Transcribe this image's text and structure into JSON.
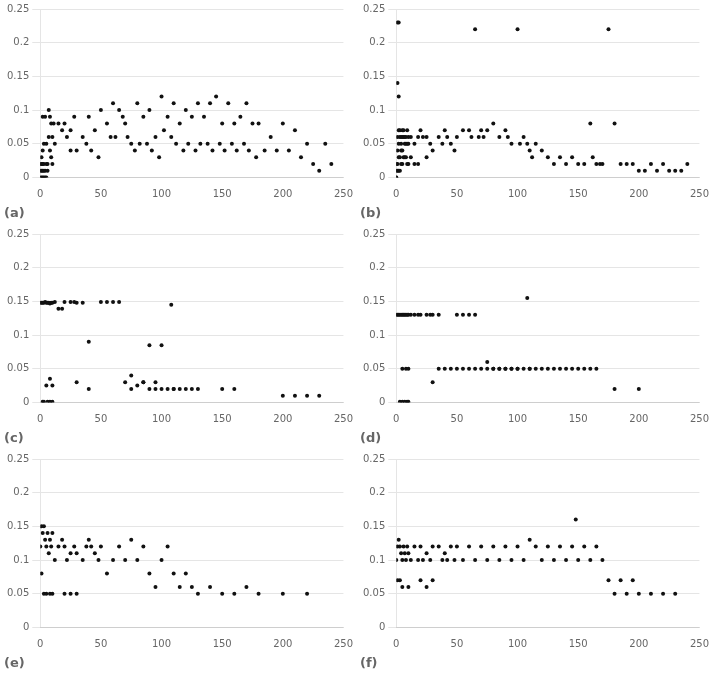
{
  "chart_data": [
    {
      "type": "scatter",
      "title": "(a)",
      "x": [
        0,
        0,
        0,
        1,
        1,
        1,
        1,
        2,
        2,
        2,
        2,
        2,
        3,
        3,
        3,
        3,
        4,
        4,
        4,
        5,
        5,
        5,
        6,
        6,
        7,
        7,
        8,
        8,
        9,
        9,
        10,
        10,
        11,
        12,
        15,
        18,
        20,
        22,
        25,
        25,
        28,
        30,
        35,
        38,
        40,
        42,
        45,
        48,
        50,
        55,
        58,
        60,
        62,
        65,
        68,
        70,
        72,
        75,
        78,
        80,
        82,
        85,
        88,
        90,
        92,
        95,
        98,
        100,
        102,
        105,
        108,
        110,
        112,
        115,
        118,
        120,
        122,
        125,
        128,
        130,
        132,
        135,
        138,
        140,
        142,
        145,
        148,
        150,
        152,
        155,
        158,
        160,
        162,
        165,
        168,
        170,
        172,
        175,
        178,
        180,
        185,
        190,
        195,
        200,
        205,
        210,
        215,
        220,
        225,
        230,
        235,
        240
      ],
      "values": [
        0.0,
        0.01,
        0.02,
        0.0,
        0.01,
        0.02,
        0.03,
        0.0,
        0.01,
        0.02,
        0.04,
        0.09,
        0.0,
        0.01,
        0.02,
        0.05,
        0.0,
        0.01,
        0.09,
        0.0,
        0.02,
        0.05,
        0.01,
        0.02,
        0.1,
        0.06,
        0.09,
        0.04,
        0.08,
        0.03,
        0.06,
        0.02,
        0.08,
        0.05,
        0.08,
        0.07,
        0.08,
        0.06,
        0.07,
        0.04,
        0.09,
        0.04,
        0.06,
        0.05,
        0.09,
        0.04,
        0.07,
        0.03,
        0.1,
        0.08,
        0.06,
        0.11,
        0.06,
        0.1,
        0.09,
        0.08,
        0.06,
        0.05,
        0.04,
        0.11,
        0.05,
        0.09,
        0.05,
        0.1,
        0.04,
        0.06,
        0.03,
        0.12,
        0.07,
        0.09,
        0.06,
        0.11,
        0.05,
        0.08,
        0.04,
        0.1,
        0.05,
        0.09,
        0.04,
        0.11,
        0.05,
        0.09,
        0.05,
        0.11,
        0.04,
        0.12,
        0.05,
        0.08,
        0.04,
        0.11,
        0.05,
        0.08,
        0.04,
        0.09,
        0.05,
        0.11,
        0.04,
        0.08,
        0.03,
        0.08,
        0.04,
        0.06,
        0.04,
        0.08,
        0.04,
        0.07,
        0.03,
        0.05,
        0.02,
        0.01,
        0.05,
        0.02
      ],
      "color": "#111111",
      "xlim": [
        0,
        250
      ],
      "ylim": [
        0,
        0.25
      ],
      "xticks": [
        0,
        50,
        100,
        150,
        200,
        250
      ],
      "yticks": [
        0,
        0.05,
        0.1,
        0.15,
        0.2,
        0.25
      ],
      "grid": "y"
    },
    {
      "type": "scatter",
      "title": "(b)",
      "x": [
        0,
        0,
        0,
        0,
        1,
        1,
        1,
        1,
        1,
        1,
        2,
        2,
        2,
        2,
        2,
        2,
        3,
        3,
        3,
        3,
        4,
        4,
        4,
        4,
        5,
        5,
        5,
        5,
        6,
        6,
        6,
        7,
        7,
        7,
        8,
        8,
        8,
        9,
        9,
        9,
        10,
        10,
        10,
        12,
        12,
        15,
        15,
        18,
        18,
        20,
        22,
        25,
        25,
        28,
        30,
        35,
        38,
        40,
        42,
        45,
        48,
        50,
        55,
        60,
        62,
        65,
        68,
        70,
        72,
        75,
        80,
        85,
        90,
        92,
        95,
        100,
        102,
        105,
        108,
        110,
        112,
        115,
        120,
        125,
        130,
        135,
        140,
        145,
        150,
        155,
        160,
        162,
        165,
        168,
        170,
        175,
        180,
        185,
        190,
        195,
        200,
        205,
        210,
        215,
        220,
        225,
        230,
        235,
        240
      ],
      "values": [
        0.0,
        0.0,
        0.01,
        0.02,
        0.23,
        0.14,
        0.06,
        0.04,
        0.02,
        0.01,
        0.23,
        0.12,
        0.07,
        0.05,
        0.03,
        0.01,
        0.07,
        0.06,
        0.03,
        0.01,
        0.06,
        0.05,
        0.04,
        0.02,
        0.07,
        0.06,
        0.04,
        0.02,
        0.07,
        0.06,
        0.03,
        0.06,
        0.05,
        0.03,
        0.06,
        0.05,
        0.03,
        0.07,
        0.05,
        0.02,
        0.06,
        0.05,
        0.02,
        0.06,
        0.03,
        0.05,
        0.02,
        0.06,
        0.02,
        0.07,
        0.06,
        0.06,
        0.03,
        0.05,
        0.04,
        0.06,
        0.05,
        0.07,
        0.06,
        0.05,
        0.04,
        0.06,
        0.07,
        0.07,
        0.06,
        0.22,
        0.06,
        0.07,
        0.06,
        0.07,
        0.08,
        0.06,
        0.07,
        0.06,
        0.05,
        0.22,
        0.05,
        0.06,
        0.05,
        0.04,
        0.03,
        0.05,
        0.04,
        0.03,
        0.02,
        0.03,
        0.02,
        0.03,
        0.02,
        0.02,
        0.08,
        0.03,
        0.02,
        0.02,
        0.02,
        0.22,
        0.08,
        0.02,
        0.02,
        0.02,
        0.01,
        0.01,
        0.02,
        0.01,
        0.02,
        0.01,
        0.01,
        0.01,
        0.02
      ],
      "color": "#111111",
      "xlim": [
        0,
        250
      ],
      "ylim": [
        0,
        0.25
      ],
      "xticks": [
        0,
        50,
        100,
        150,
        200,
        250
      ],
      "yticks": [
        0,
        0.05,
        0.1,
        0.15,
        0.2,
        0.25
      ],
      "grid": "y"
    },
    {
      "type": "scatter",
      "title": "(c)",
      "x": [
        0,
        1,
        2,
        2,
        3,
        3,
        4,
        5,
        6,
        6,
        7,
        8,
        8,
        9,
        10,
        10,
        12,
        15,
        18,
        20,
        25,
        28,
        30,
        35,
        40,
        50,
        55,
        60,
        65,
        70,
        75,
        80,
        85,
        90,
        95,
        100,
        108,
        110,
        5,
        8,
        10,
        30,
        40,
        75,
        85,
        90,
        95,
        100,
        105,
        110,
        115,
        120,
        125,
        130,
        150,
        160,
        200,
        210,
        220,
        230
      ],
      "values": [
        0.148,
        0.148,
        0.148,
        0.001,
        0.148,
        0.001,
        0.149,
        0.148,
        0.148,
        0.001,
        0.148,
        0.147,
        0.001,
        0.148,
        0.148,
        0.001,
        0.149,
        0.139,
        0.139,
        0.149,
        0.149,
        0.149,
        0.148,
        0.148,
        0.09,
        0.149,
        0.149,
        0.149,
        0.149,
        0.03,
        0.04,
        0.025,
        0.03,
        0.085,
        0.03,
        0.085,
        0.145,
        0.02,
        0.025,
        0.035,
        0.025,
        0.03,
        0.02,
        0.02,
        0.03,
        0.02,
        0.02,
        0.02,
        0.02,
        0.02,
        0.02,
        0.02,
        0.02,
        0.02,
        0.02,
        0.02,
        0.01,
        0.01,
        0.01,
        0.01
      ],
      "color": "#111111",
      "xlim": [
        0,
        250
      ],
      "ylim": [
        0,
        0.25
      ],
      "xticks": [
        0,
        50,
        100,
        150,
        200,
        250
      ],
      "yticks": [
        0,
        0.05,
        0.1,
        0.15,
        0.2,
        0.25
      ],
      "grid": "y"
    },
    {
      "type": "scatter",
      "title": "(d)",
      "x": [
        0,
        1,
        2,
        3,
        3,
        4,
        5,
        5,
        6,
        7,
        7,
        8,
        9,
        9,
        10,
        10,
        12,
        15,
        18,
        20,
        25,
        28,
        30,
        35,
        50,
        55,
        60,
        65,
        70,
        75,
        80,
        85,
        90,
        95,
        100,
        110,
        5,
        8,
        10,
        30,
        35,
        40,
        45,
        50,
        55,
        60,
        65,
        75,
        80,
        85,
        90,
        95,
        100,
        105,
        108,
        110,
        115,
        120,
        125,
        130,
        135,
        140,
        145,
        150,
        155,
        160,
        165,
        180,
        200
      ],
      "values": [
        0.13,
        0.13,
        0.13,
        0.13,
        0.001,
        0.13,
        0.13,
        0.001,
        0.13,
        0.13,
        0.001,
        0.13,
        0.13,
        0.001,
        0.13,
        0.001,
        0.13,
        0.13,
        0.13,
        0.13,
        0.13,
        0.13,
        0.13,
        0.13,
        0.13,
        0.13,
        0.13,
        0.13,
        0.05,
        0.06,
        0.05,
        0.05,
        0.05,
        0.05,
        0.05,
        0.05,
        0.05,
        0.05,
        0.05,
        0.03,
        0.05,
        0.05,
        0.05,
        0.05,
        0.05,
        0.05,
        0.05,
        0.05,
        0.05,
        0.05,
        0.05,
        0.05,
        0.05,
        0.05,
        0.155,
        0.05,
        0.05,
        0.05,
        0.05,
        0.05,
        0.05,
        0.05,
        0.05,
        0.05,
        0.05,
        0.05,
        0.05,
        0.02,
        0.02
      ],
      "color": "#111111",
      "xlim": [
        0,
        250
      ],
      "ylim": [
        0,
        0.25
      ],
      "xticks": [
        0,
        50,
        100,
        150,
        200,
        250
      ],
      "yticks": [
        0,
        0.05,
        0.1,
        0.15,
        0.2,
        0.25
      ],
      "grid": "y"
    },
    {
      "type": "scatter",
      "title": "(e)",
      "x": [
        0,
        1,
        1,
        2,
        3,
        3,
        4,
        5,
        5,
        6,
        7,
        8,
        8,
        9,
        10,
        10,
        12,
        15,
        18,
        20,
        20,
        22,
        25,
        25,
        28,
        30,
        30,
        35,
        38,
        40,
        42,
        45,
        48,
        50,
        55,
        60,
        65,
        70,
        75,
        80,
        85,
        90,
        95,
        100,
        105,
        110,
        115,
        120,
        125,
        130,
        140,
        150,
        160,
        170,
        180,
        200,
        220
      ],
      "values": [
        0.12,
        0.15,
        0.08,
        0.14,
        0.15,
        0.05,
        0.13,
        0.12,
        0.05,
        0.14,
        0.11,
        0.13,
        0.05,
        0.12,
        0.14,
        0.05,
        0.1,
        0.12,
        0.13,
        0.12,
        0.05,
        0.1,
        0.11,
        0.05,
        0.12,
        0.11,
        0.05,
        0.1,
        0.12,
        0.13,
        0.12,
        0.11,
        0.1,
        0.12,
        0.08,
        0.1,
        0.12,
        0.1,
        0.13,
        0.1,
        0.12,
        0.08,
        0.06,
        0.1,
        0.12,
        0.08,
        0.06,
        0.08,
        0.06,
        0.05,
        0.06,
        0.05,
        0.05,
        0.06,
        0.05,
        0.05,
        0.05
      ],
      "color": "#111111",
      "xlim": [
        0,
        250
      ],
      "ylim": [
        0,
        0.25
      ],
      "xticks": [
        0,
        50,
        100,
        150,
        200,
        250
      ],
      "yticks": [
        0,
        0.05,
        0.1,
        0.15,
        0.2,
        0.25
      ],
      "grid": "y"
    },
    {
      "type": "scatter",
      "title": "(f)",
      "x": [
        0,
        1,
        1,
        2,
        3,
        3,
        4,
        5,
        5,
        6,
        7,
        8,
        9,
        10,
        10,
        12,
        15,
        18,
        20,
        20,
        22,
        25,
        25,
        28,
        30,
        30,
        35,
        38,
        40,
        42,
        45,
        48,
        50,
        55,
        60,
        65,
        70,
        75,
        80,
        85,
        90,
        95,
        100,
        105,
        110,
        115,
        120,
        125,
        130,
        135,
        140,
        145,
        148,
        150,
        155,
        160,
        165,
        170,
        175,
        180,
        185,
        190,
        195,
        200,
        210,
        220,
        230
      ],
      "values": [
        0.1,
        0.12,
        0.07,
        0.13,
        0.12,
        0.07,
        0.11,
        0.1,
        0.06,
        0.12,
        0.11,
        0.1,
        0.12,
        0.11,
        0.06,
        0.1,
        0.12,
        0.1,
        0.12,
        0.07,
        0.1,
        0.11,
        0.06,
        0.1,
        0.12,
        0.07,
        0.12,
        0.1,
        0.11,
        0.1,
        0.12,
        0.1,
        0.12,
        0.1,
        0.12,
        0.1,
        0.12,
        0.1,
        0.12,
        0.1,
        0.12,
        0.1,
        0.12,
        0.1,
        0.13,
        0.12,
        0.1,
        0.12,
        0.1,
        0.12,
        0.1,
        0.12,
        0.16,
        0.1,
        0.12,
        0.1,
        0.12,
        0.1,
        0.07,
        0.05,
        0.07,
        0.05,
        0.07,
        0.05,
        0.05,
        0.05,
        0.05
      ],
      "color": "#111111",
      "xlim": [
        0,
        250
      ],
      "ylim": [
        0,
        0.25
      ],
      "xticks": [
        0,
        50,
        100,
        150,
        200,
        250
      ],
      "yticks": [
        0,
        0.05,
        0.1,
        0.15,
        0.2,
        0.25
      ],
      "grid": "y"
    }
  ]
}
